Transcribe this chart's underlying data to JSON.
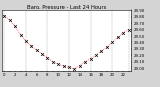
{
  "title": "Baro. Pressure - Last 24 Hours",
  "bg_color": "#d4d4d4",
  "plot_bg_color": "#ffffff",
  "line_color": "#ff0000",
  "marker_color": "#000000",
  "grid_color": "#999999",
  "hours": [
    0,
    1,
    2,
    3,
    4,
    5,
    6,
    7,
    8,
    9,
    10,
    11,
    12,
    13,
    14,
    15,
    16,
    17,
    18,
    19,
    20,
    21,
    22,
    23
  ],
  "pressure": [
    29.82,
    29.75,
    29.65,
    29.52,
    29.42,
    29.35,
    29.28,
    29.22,
    29.16,
    29.1,
    29.06,
    29.03,
    29.01,
    28.99,
    29.04,
    29.1,
    29.15,
    29.2,
    29.27,
    29.33,
    29.4,
    29.48,
    29.55,
    29.6
  ],
  "ylim_min": 28.95,
  "ylim_max": 29.9,
  "ytick_vals": [
    29.0,
    29.1,
    29.2,
    29.3,
    29.4,
    29.5,
    29.6,
    29.7,
    29.8,
    29.9
  ],
  "title_fontsize": 3.8,
  "tick_fontsize": 2.8,
  "grid_positions": [
    0,
    4,
    8,
    12,
    16,
    20,
    23
  ]
}
